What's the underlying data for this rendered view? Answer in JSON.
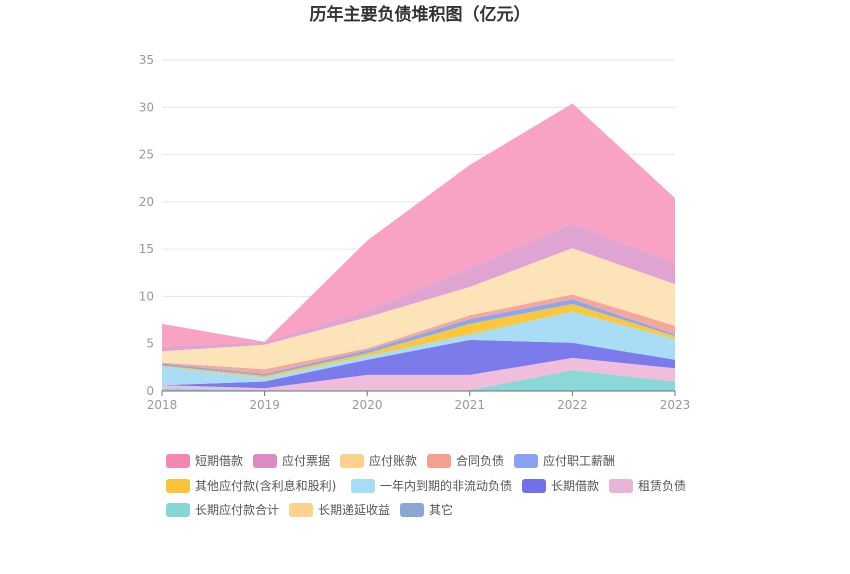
{
  "chart_data": {
    "type": "area",
    "stacked": true,
    "title": "历年主要负债堆积图（亿元）",
    "categories": [
      "2018",
      "2019",
      "2020",
      "2021",
      "2022",
      "2023"
    ],
    "ylim": [
      0,
      35
    ],
    "yticks": [
      0,
      5,
      10,
      15,
      20,
      25,
      30,
      35
    ],
    "grid": true,
    "legend_position": "bottom",
    "series": [
      {
        "name": "长期应付款合计",
        "color": "#8ad8d8",
        "values": [
          0.3,
          0.1,
          0.1,
          0.1,
          2.2,
          1.0
        ]
      },
      {
        "name": "租赁负债",
        "color": "#f0bddb",
        "values": [
          0.3,
          0.2,
          1.6,
          1.6,
          1.3,
          1.4
        ]
      },
      {
        "name": "长期借款",
        "color": "#7b7beb",
        "values": [
          0.0,
          0.7,
          1.6,
          3.7,
          1.6,
          0.9
        ]
      },
      {
        "name": "一年内到期的非流动负债",
        "color": "#a8ddf5",
        "values": [
          2.0,
          0.4,
          0.4,
          0.6,
          3.3,
          2.2
        ]
      },
      {
        "name": "其他应付款(含利息和股利)",
        "color": "#fbc83c",
        "values": [
          0.1,
          0.2,
          0.3,
          1.1,
          0.8,
          0.3
        ]
      },
      {
        "name": "应付职工薪酬",
        "color": "#8aa7f0",
        "values": [
          0.2,
          0.2,
          0.3,
          0.5,
          0.5,
          0.2
        ]
      },
      {
        "name": "合同负债",
        "color": "#f4a79d",
        "values": [
          0.1,
          0.5,
          0.2,
          0.4,
          0.5,
          0.9
        ]
      },
      {
        "name": "长期递延收益",
        "color": "#fcd9a1",
        "values": [
          0.0,
          0.0,
          0.0,
          0.0,
          0.0,
          0.0
        ]
      },
      {
        "name": "其它",
        "color": "#8fabdb",
        "values": [
          0.0,
          0.0,
          0.0,
          0.0,
          0.0,
          0.0
        ]
      },
      {
        "name": "应付账款",
        "color": "#fde3b8",
        "values": [
          1.2,
          2.6,
          3.3,
          3.0,
          4.9,
          4.4
        ]
      },
      {
        "name": "应付票据",
        "color": "#e0a4d2",
        "values": [
          0.5,
          0.3,
          0.7,
          2.0,
          2.6,
          2.2
        ]
      },
      {
        "name": "短期借款",
        "color": "#f8a2c4",
        "values": [
          2.4,
          0.0,
          7.4,
          10.9,
          12.7,
          6.9
        ]
      }
    ],
    "legend": [
      {
        "name": "短期借款",
        "color": "#f386b3"
      },
      {
        "name": "应付票据",
        "color": "#dc8ac4"
      },
      {
        "name": "应付账款",
        "color": "#fdd18e"
      },
      {
        "name": "合同负债",
        "color": "#f4a08f"
      },
      {
        "name": "应付职工薪酬",
        "color": "#86a4f2"
      },
      {
        "name": "其他应付款(含利息和股利)",
        "color": "#fbc337"
      },
      {
        "name": "一年内到期的非流动负债",
        "color": "#a6dcf7"
      },
      {
        "name": "长期借款",
        "color": "#7272e8"
      },
      {
        "name": "租赁负债",
        "color": "#e8b4d7"
      },
      {
        "name": "长期应付款合计",
        "color": "#86d6d6"
      },
      {
        "name": "长期递延收益",
        "color": "#fdd291"
      },
      {
        "name": "其它",
        "color": "#8aa7d6"
      }
    ]
  }
}
